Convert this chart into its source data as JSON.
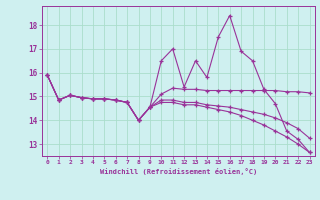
{
  "xlabel": "Windchill (Refroidissement éolien,°C)",
  "background_color": "#cff0f0",
  "line_color": "#993399",
  "grid_color": "#aaddcc",
  "xlim": [
    -0.5,
    23.5
  ],
  "ylim": [
    12.5,
    18.8
  ],
  "xticks": [
    0,
    1,
    2,
    3,
    4,
    5,
    6,
    7,
    8,
    9,
    10,
    11,
    12,
    13,
    14,
    15,
    16,
    17,
    18,
    19,
    20,
    21,
    22,
    23
  ],
  "yticks": [
    13,
    14,
    15,
    16,
    17,
    18
  ],
  "hours": [
    0,
    1,
    2,
    3,
    4,
    5,
    6,
    7,
    8,
    9,
    10,
    11,
    12,
    13,
    14,
    15,
    16,
    17,
    18,
    19,
    20,
    21,
    22,
    23
  ],
  "line1": [
    15.9,
    14.85,
    15.05,
    14.95,
    14.9,
    14.9,
    14.85,
    14.75,
    14.0,
    14.55,
    16.5,
    17.0,
    15.4,
    16.5,
    15.8,
    17.5,
    18.4,
    16.9,
    16.5,
    15.3,
    14.7,
    13.55,
    13.2,
    12.65
  ],
  "line2": [
    15.9,
    14.85,
    15.05,
    14.95,
    14.9,
    14.9,
    14.85,
    14.75,
    14.0,
    14.55,
    15.1,
    15.35,
    15.3,
    15.3,
    15.25,
    15.25,
    15.25,
    15.25,
    15.25,
    15.25,
    15.25,
    15.2,
    15.2,
    15.15
  ],
  "line3": [
    15.9,
    14.85,
    15.05,
    14.95,
    14.9,
    14.9,
    14.85,
    14.75,
    14.0,
    14.55,
    14.85,
    14.85,
    14.75,
    14.75,
    14.65,
    14.6,
    14.55,
    14.45,
    14.35,
    14.25,
    14.1,
    13.9,
    13.65,
    13.25
  ],
  "line4": [
    15.9,
    14.85,
    15.05,
    14.95,
    14.9,
    14.9,
    14.85,
    14.75,
    14.0,
    14.55,
    14.75,
    14.75,
    14.65,
    14.65,
    14.55,
    14.45,
    14.35,
    14.2,
    14.0,
    13.8,
    13.55,
    13.3,
    13.0,
    12.65
  ]
}
